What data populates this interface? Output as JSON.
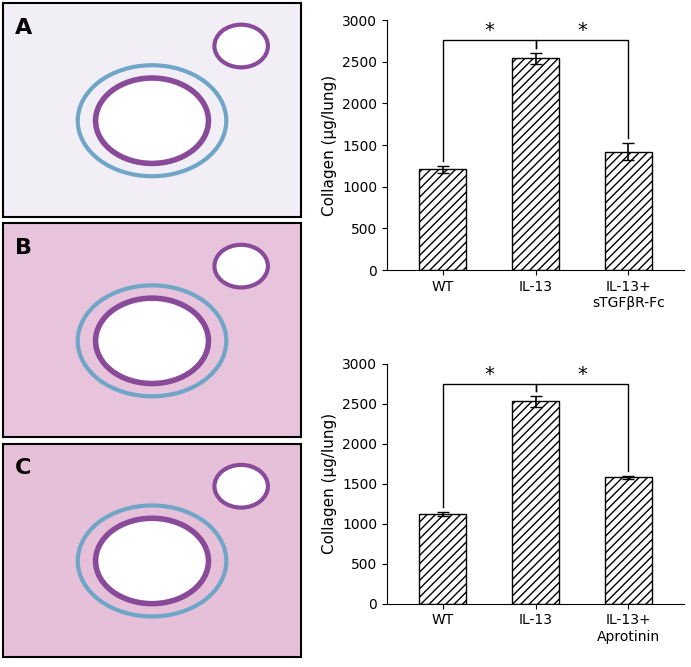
{
  "panels": [
    "A",
    "B",
    "C"
  ],
  "chart_data": [
    {
      "type": "bar",
      "categories": [
        "WT",
        "IL-13",
        "IL-13+\nsTGFβR-Fc"
      ],
      "values": [
        1210,
        2540,
        1420
      ],
      "errors": [
        40,
        70,
        100
      ],
      "color": "#ffffff",
      "y_label": "Collagen (µg/lung)",
      "ylim": [
        0,
        3000
      ],
      "yticks": [
        0,
        500,
        1000,
        1500,
        2000,
        2500,
        3000
      ],
      "annotations": [
        {
          "pair": [
            "WT",
            "IL-13"
          ],
          "label": "*"
        },
        {
          "pair": [
            "IL-13",
            "IL-13+\nsTGFβR-Fc"
          ],
          "label": "*"
        }
      ]
    },
    {
      "type": "bar",
      "categories": [
        "WT",
        "IL-13",
        "IL-13+\nAprotinin"
      ],
      "values": [
        1120,
        2530,
        1580
      ],
      "errors": [
        30,
        70,
        20
      ],
      "color": "#ffffff",
      "y_label": "Collagen (µg/lung)",
      "ylim": [
        0,
        3000
      ],
      "yticks": [
        0,
        500,
        1000,
        1500,
        2000,
        2500,
        3000
      ],
      "annotations": [
        {
          "pair": [
            "WT",
            "IL-13"
          ],
          "label": "*"
        },
        {
          "pair": [
            "IL-13",
            "IL-13+\nAprotinin"
          ],
          "label": "*"
        }
      ]
    }
  ]
}
